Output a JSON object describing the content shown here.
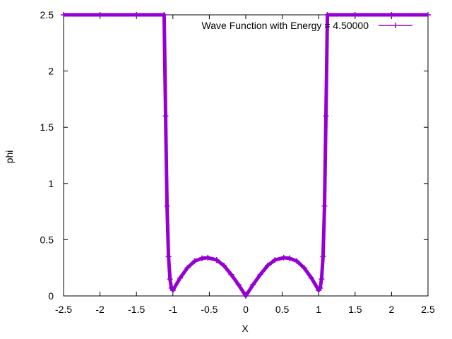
{
  "chart_data": {
    "type": "line",
    "title": "",
    "xlabel": "X",
    "ylabel": "phi",
    "xlim": [
      -2.5,
      2.5
    ],
    "ylim": [
      0,
      2.5
    ],
    "xticks": [
      "-2.5",
      "-2",
      "-1.5",
      "-1",
      "-0.5",
      "0",
      "0.5",
      "1",
      "1.5",
      "2",
      "2.5"
    ],
    "yticks": [
      "0",
      "0.5",
      "1",
      "1.5",
      "2",
      "2.5"
    ],
    "grid": false,
    "legend_position": "top-right",
    "series_color": "#9400d3",
    "series": [
      {
        "name": "Wave Function with Energy = 4.50000",
        "marker": "plus",
        "x": [
          -2.5,
          -2.0,
          -1.5,
          -1.12,
          -1.1,
          -1.08,
          -1.06,
          -1.04,
          -1.02,
          -1.0,
          -0.9,
          -0.8,
          -0.7,
          -0.6,
          -0.52,
          -0.4,
          -0.3,
          -0.2,
          -0.1,
          0.0,
          0.1,
          0.2,
          0.3,
          0.4,
          0.52,
          0.6,
          0.7,
          0.8,
          0.9,
          1.0,
          1.02,
          1.04,
          1.06,
          1.08,
          1.1,
          1.12,
          1.5,
          2.0,
          2.5
        ],
        "y": [
          2.5,
          2.5,
          2.5,
          2.5,
          1.6,
          0.8,
          0.35,
          0.15,
          0.07,
          0.05,
          0.16,
          0.25,
          0.31,
          0.335,
          0.34,
          0.32,
          0.27,
          0.19,
          0.1,
          0.0,
          0.1,
          0.19,
          0.27,
          0.32,
          0.34,
          0.335,
          0.31,
          0.25,
          0.16,
          0.05,
          0.07,
          0.15,
          0.35,
          0.8,
          1.6,
          2.5,
          2.5,
          2.5,
          2.5
        ]
      }
    ]
  }
}
